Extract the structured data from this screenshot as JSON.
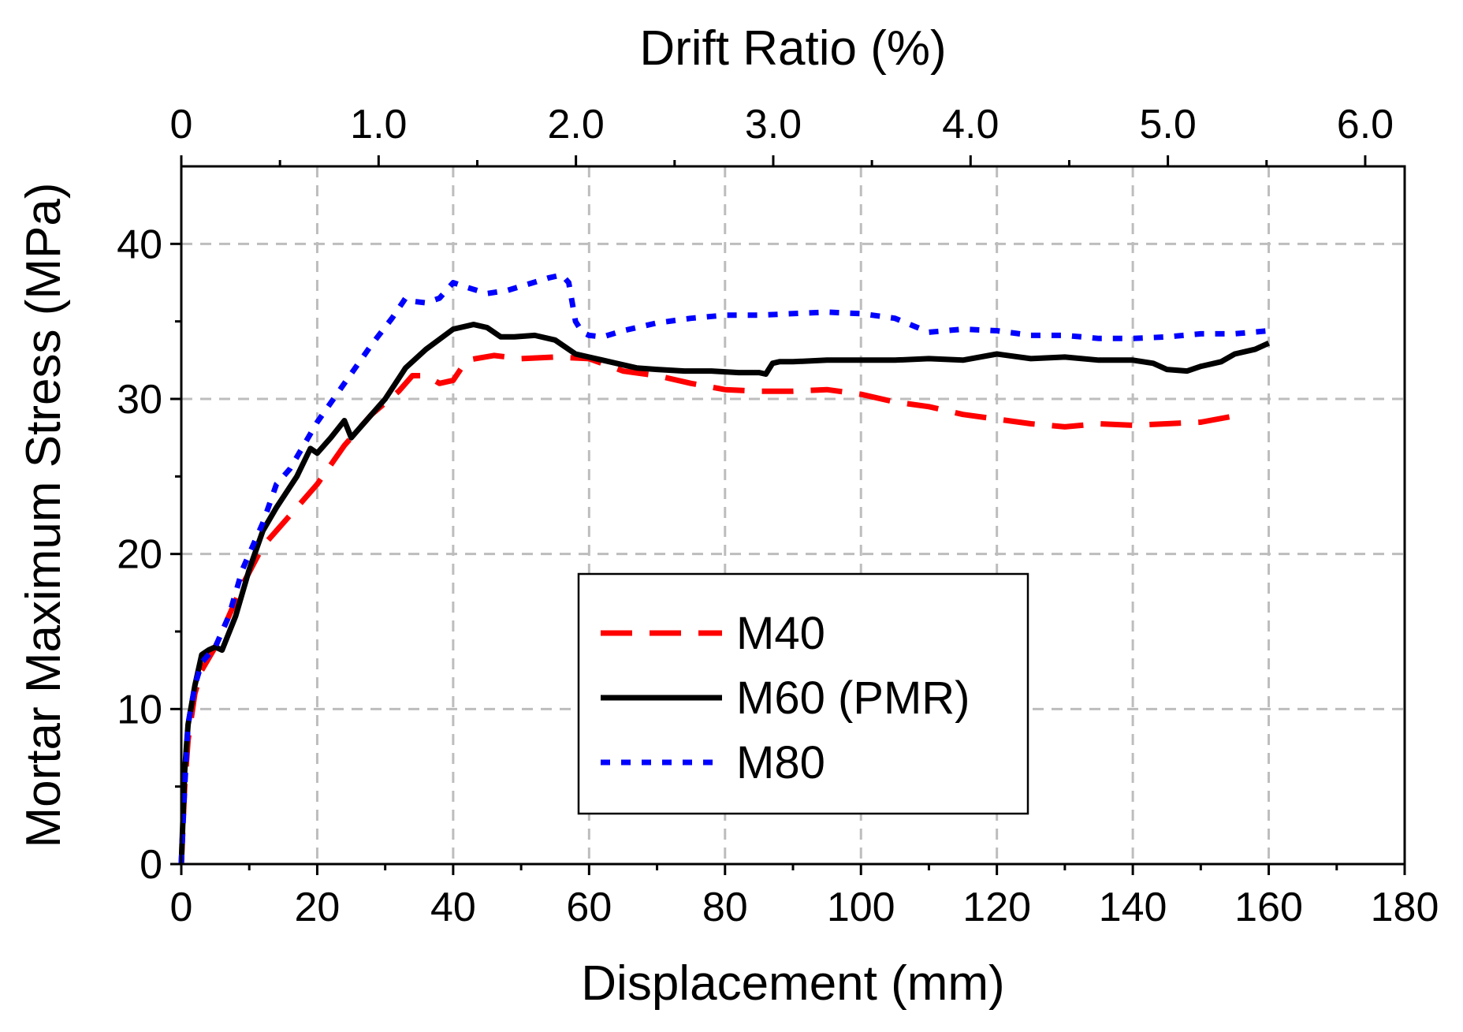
{
  "chart_data": {
    "type": "line",
    "title": "",
    "xlabel": "Displacement (mm)",
    "ylabel": "Mortar Maximum Stress (MPa)",
    "x2label": "Drift Ratio (%)",
    "xlim": [
      0,
      180
    ],
    "ylim": [
      0,
      45
    ],
    "x2lim": [
      0,
      6.2
    ],
    "grid": true,
    "legend_position": "center-right",
    "x_ticks": [
      0,
      20,
      40,
      60,
      80,
      100,
      120,
      140,
      160,
      180
    ],
    "x_tick_labels": [
      "0",
      "20",
      "40",
      "60",
      "80",
      "100",
      "120",
      "140",
      "160",
      "180"
    ],
    "y_ticks": [
      0,
      10,
      20,
      30,
      40
    ],
    "y_tick_labels": [
      "0",
      "10",
      "20",
      "30",
      "40"
    ],
    "x2_ticks": [
      0,
      1.0,
      2.0,
      3.0,
      4.0,
      5.0,
      6.0
    ],
    "x2_tick_labels": [
      "0",
      "1.0",
      "2.0",
      "3.0",
      "4.0",
      "5.0",
      "6.0"
    ],
    "series": [
      {
        "name": "M40",
        "color": "#ff0000",
        "style": "dashed",
        "x": [
          0,
          0.5,
          1,
          2,
          3,
          5,
          7,
          9,
          12,
          14,
          17,
          20,
          24,
          28,
          32,
          34,
          36,
          38,
          40,
          42,
          46,
          50,
          55,
          60,
          65,
          70,
          75,
          80,
          85,
          90,
          95,
          100,
          105,
          110,
          115,
          120,
          125,
          130,
          135,
          140,
          145,
          150,
          155
        ],
        "y": [
          0,
          5,
          8,
          11,
          12.5,
          14,
          16,
          18,
          20.5,
          21.5,
          23,
          24.5,
          27,
          29,
          30.5,
          31.5,
          31.5,
          31,
          31.2,
          32.5,
          32.8,
          32.6,
          32.7,
          32.6,
          31.8,
          31.5,
          31,
          30.6,
          30.5,
          30.5,
          30.6,
          30.3,
          29.8,
          29.5,
          29,
          28.7,
          28.4,
          28.2,
          28.4,
          28.3,
          28.4,
          28.5,
          28.9
        ]
      },
      {
        "name": "M60 (PMR)",
        "color": "#000000",
        "style": "solid",
        "x": [
          0,
          0.5,
          1,
          2,
          3,
          4,
          5,
          6,
          8,
          10,
          12,
          14,
          17,
          19,
          20,
          22,
          24,
          25,
          27,
          30,
          33,
          36,
          40,
          43,
          45,
          47,
          49,
          52,
          55,
          58,
          61,
          64,
          67,
          70,
          74,
          78,
          82,
          85,
          86,
          87,
          88,
          90,
          95,
          100,
          105,
          110,
          115,
          120,
          125,
          130,
          135,
          140,
          143,
          145,
          148,
          150,
          153,
          155,
          158,
          160
        ],
        "y": [
          0,
          6,
          9,
          11.5,
          13.5,
          13.8,
          14,
          13.8,
          16,
          19,
          21.5,
          23,
          25,
          26.8,
          26.5,
          27.5,
          28.6,
          27.5,
          28.5,
          30,
          32,
          33.2,
          34.5,
          34.8,
          34.6,
          34,
          34,
          34.1,
          33.8,
          32.9,
          32.6,
          32.3,
          32,
          31.9,
          31.8,
          31.8,
          31.7,
          31.7,
          31.6,
          32.3,
          32.4,
          32.4,
          32.5,
          32.5,
          32.5,
          32.6,
          32.5,
          32.9,
          32.6,
          32.7,
          32.5,
          32.5,
          32.3,
          31.9,
          31.8,
          32.1,
          32.4,
          32.9,
          33.2,
          33.6
        ]
      },
      {
        "name": "M80",
        "color": "#0000ff",
        "style": "dotted",
        "x": [
          0,
          0.5,
          1,
          2,
          3,
          5,
          7,
          9,
          12,
          14,
          16,
          18,
          20,
          24,
          28,
          31,
          33,
          34,
          36,
          38,
          40,
          42,
          45,
          48,
          51,
          54,
          56,
          57,
          58,
          59,
          60,
          62,
          65,
          70,
          75,
          80,
          85,
          90,
          95,
          100,
          105,
          110,
          115,
          120,
          125,
          130,
          135,
          140,
          145,
          150,
          155,
          160
        ],
        "y": [
          0,
          5,
          9,
          11.5,
          13,
          14,
          16,
          19,
          22,
          24.5,
          25.5,
          27,
          28.5,
          31,
          33.5,
          35.2,
          36.5,
          36.3,
          36.2,
          36.5,
          37.5,
          37.2,
          36.8,
          37,
          37.4,
          37.8,
          38,
          37.5,
          35,
          34.3,
          34.1,
          34,
          34.4,
          34.9,
          35.2,
          35.4,
          35.4,
          35.5,
          35.6,
          35.5,
          35.2,
          34.3,
          34.5,
          34.4,
          34.1,
          34.1,
          33.9,
          33.9,
          34,
          34.2,
          34.2,
          34.4
        ]
      }
    ]
  }
}
